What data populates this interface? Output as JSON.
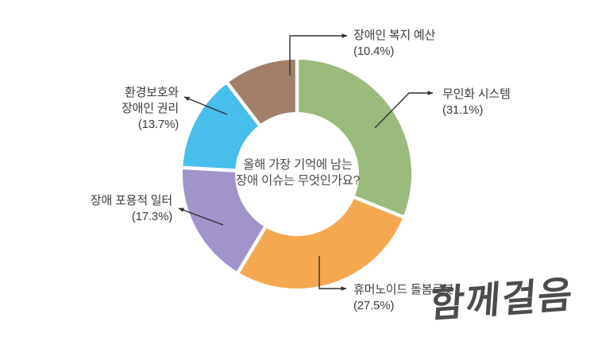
{
  "chart_data": {
    "type": "pie",
    "subtype": "donut",
    "title": "올해 가장 기억에 남는 장애 이슈는 무엇인가요?",
    "center_lines": {
      "line1": "올해 가장 기억에 남는",
      "line2": "장애 이슈는 무엇인가요?"
    },
    "start_angle_deg": 0,
    "direction": "clockwise",
    "inner_radius_ratio": 0.54,
    "gap_color": "#ffffff",
    "legend_position": "callout-labels",
    "segments": [
      {
        "slug": "unmanned-system",
        "label": "무인화 시스템",
        "pct_text": "(31.1%)",
        "value": 31.1,
        "color": "#9ABB7C"
      },
      {
        "slug": "humanoid-care-robot",
        "label": "휴머노이드 돌봄로봇",
        "pct_text": "(27.5%)",
        "value": 27.5,
        "color": "#F6A851"
      },
      {
        "slug": "inclusive-workplace",
        "label": "장애 포용적 일터",
        "pct_text": "(17.3%)",
        "value": 17.3,
        "color": "#A094CB"
      },
      {
        "slug": "environment-rights",
        "label": "환경보호와 장애인 권리",
        "label_lines": {
          "line1": "환경보호와",
          "line2": "장애인 권리"
        },
        "pct_text": "(13.7%)",
        "value": 13.7,
        "color": "#47BEEC"
      },
      {
        "slug": "welfare-budget",
        "label": "장애인 복지 예산",
        "pct_text": "(10.4%)",
        "value": 10.4,
        "color": "#A17F68"
      }
    ]
  },
  "watermark": {
    "text": "함께걸음"
  },
  "line_color": "#303030"
}
